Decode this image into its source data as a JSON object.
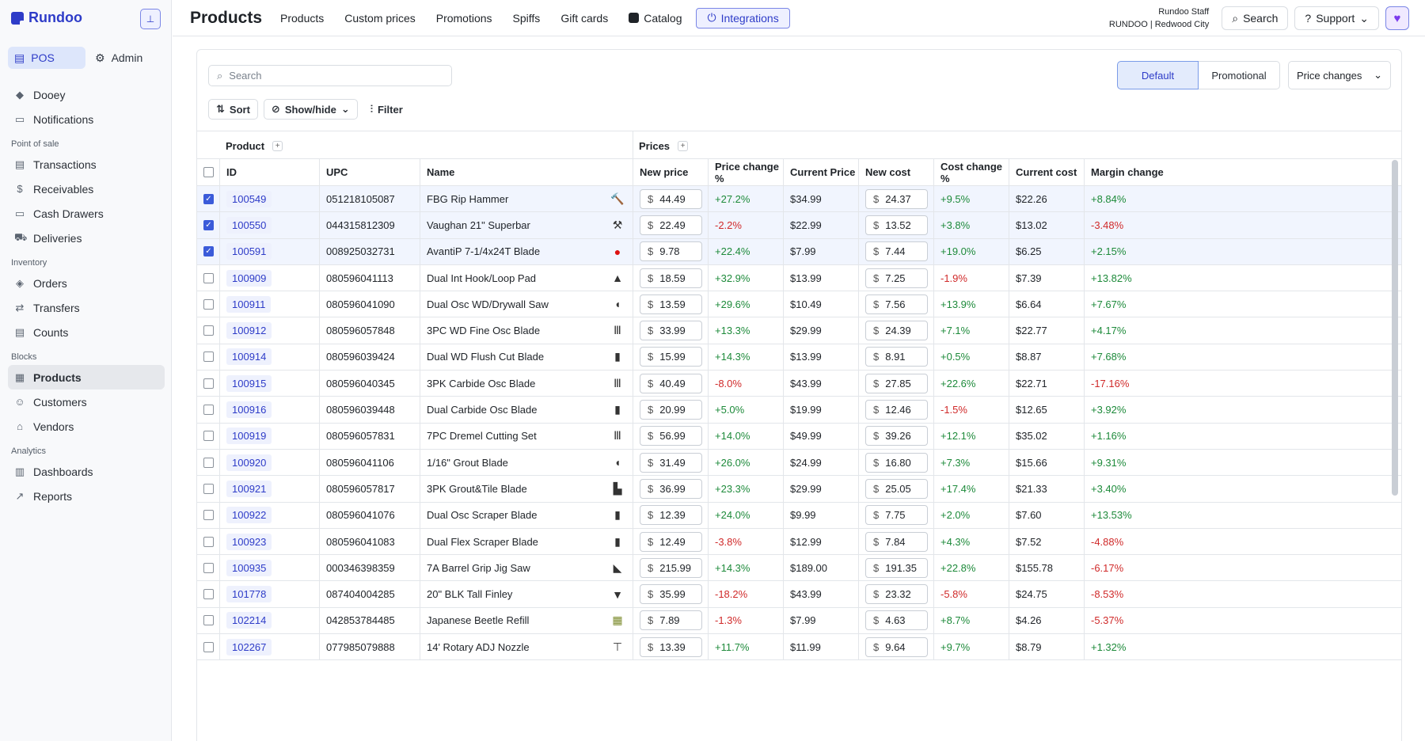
{
  "brand": {
    "name": "Rundoo"
  },
  "sidebar": {
    "modes": [
      {
        "label": "POS",
        "icon": "pos-icon"
      },
      {
        "label": "Admin",
        "icon": "gear-icon"
      }
    ],
    "top_items": [
      {
        "label": "Dooey",
        "icon": "diamond-icon"
      },
      {
        "label": "Notifications",
        "icon": "inbox-icon"
      }
    ],
    "sections": [
      {
        "title": "Point of sale",
        "items": [
          {
            "label": "Transactions",
            "icon": "receipt-icon"
          },
          {
            "label": "Receivables",
            "icon": "dollar-icon"
          },
          {
            "label": "Cash Drawers",
            "icon": "drawer-icon"
          },
          {
            "label": "Deliveries",
            "icon": "truck-icon"
          }
        ]
      },
      {
        "title": "Inventory",
        "items": [
          {
            "label": "Orders",
            "icon": "box-icon"
          },
          {
            "label": "Transfers",
            "icon": "transfer-icon"
          },
          {
            "label": "Counts",
            "icon": "clipboard-icon"
          }
        ]
      },
      {
        "title": "Blocks",
        "items": [
          {
            "label": "Products",
            "icon": "grid-icon",
            "active": true
          },
          {
            "label": "Customers",
            "icon": "people-icon"
          },
          {
            "label": "Vendors",
            "icon": "store-icon"
          }
        ]
      },
      {
        "title": "Analytics",
        "items": [
          {
            "label": "Dashboards",
            "icon": "bar-chart-icon"
          },
          {
            "label": "Reports",
            "icon": "line-chart-icon"
          }
        ]
      }
    ]
  },
  "header": {
    "title": "Products",
    "nav": [
      "Products",
      "Custom prices",
      "Promotions",
      "Spiffs",
      "Gift cards",
      "Catalog",
      "Integrations"
    ],
    "user_name": "Rundoo Staff",
    "user_store": "RUNDOO | Redwood City",
    "search_label": "Search",
    "support_label": "Support"
  },
  "toolbar": {
    "search_placeholder": "Search",
    "sort_label": "Sort",
    "showhide_label": "Show/hide",
    "filter_label": "Filter",
    "view_default": "Default",
    "view_promotional": "Promotional",
    "price_select": "Price changes"
  },
  "table": {
    "groups": {
      "product": "Product",
      "prices": "Prices"
    },
    "columns": [
      "ID",
      "UPC",
      "Name",
      "New price",
      "Price change %",
      "Current Price",
      "New cost",
      "Cost change %",
      "Current cost",
      "Margin change"
    ],
    "currency": "$",
    "rows": [
      {
        "checked": true,
        "id": "100549",
        "upc": "051218105087",
        "name": "FBG Rip Hammer",
        "new_price": "44.49",
        "price_change": "+27.2%",
        "current_price": "$34.99",
        "new_cost": "24.37",
        "cost_change": "+9.5%",
        "current_cost": "$22.26",
        "margin_change": "+8.84%",
        "thumb": "🔨"
      },
      {
        "checked": true,
        "id": "100550",
        "upc": "044315812309",
        "name": "Vaughan 21\" Superbar",
        "new_price": "22.49",
        "price_change": "-2.2%",
        "current_price": "$22.99",
        "new_cost": "13.52",
        "cost_change": "+3.8%",
        "current_cost": "$13.02",
        "margin_change": "-3.48%",
        "thumb": "⚒"
      },
      {
        "checked": true,
        "id": "100591",
        "upc": "008925032731",
        "name": "AvantiP 7-1/4x24T Blade",
        "new_price": "9.78",
        "price_change": "+22.4%",
        "current_price": "$7.99",
        "new_cost": "7.44",
        "cost_change": "+19.0%",
        "current_cost": "$6.25",
        "margin_change": "+2.15%",
        "thumb": "●"
      },
      {
        "checked": false,
        "id": "100909",
        "upc": "080596041113",
        "name": "Dual Int Hook/Loop Pad",
        "new_price": "18.59",
        "price_change": "+32.9%",
        "current_price": "$13.99",
        "new_cost": "7.25",
        "cost_change": "-1.9%",
        "current_cost": "$7.39",
        "margin_change": "+13.82%",
        "thumb": "▲"
      },
      {
        "checked": false,
        "id": "100911",
        "upc": "080596041090",
        "name": "Dual Osc WD/Drywall Saw",
        "new_price": "13.59",
        "price_change": "+29.6%",
        "current_price": "$10.49",
        "new_cost": "7.56",
        "cost_change": "+13.9%",
        "current_cost": "$6.64",
        "margin_change": "+7.67%",
        "thumb": "◖"
      },
      {
        "checked": false,
        "id": "100912",
        "upc": "080596057848",
        "name": "3PC WD Fine Osc Blade",
        "new_price": "33.99",
        "price_change": "+13.3%",
        "current_price": "$29.99",
        "new_cost": "24.39",
        "cost_change": "+7.1%",
        "current_cost": "$22.77",
        "margin_change": "+4.17%",
        "thumb": "Ⅲ"
      },
      {
        "checked": false,
        "id": "100914",
        "upc": "080596039424",
        "name": "Dual WD Flush Cut Blade",
        "new_price": "15.99",
        "price_change": "+14.3%",
        "current_price": "$13.99",
        "new_cost": "8.91",
        "cost_change": "+0.5%",
        "current_cost": "$8.87",
        "margin_change": "+7.68%",
        "thumb": "▮"
      },
      {
        "checked": false,
        "id": "100915",
        "upc": "080596040345",
        "name": "3PK Carbide Osc Blade",
        "new_price": "40.49",
        "price_change": "-8.0%",
        "current_price": "$43.99",
        "new_cost": "27.85",
        "cost_change": "+22.6%",
        "current_cost": "$22.71",
        "margin_change": "-17.16%",
        "thumb": "Ⅲ"
      },
      {
        "checked": false,
        "id": "100916",
        "upc": "080596039448",
        "name": "Dual Carbide Osc Blade",
        "new_price": "20.99",
        "price_change": "+5.0%",
        "current_price": "$19.99",
        "new_cost": "12.46",
        "cost_change": "-1.5%",
        "current_cost": "$12.65",
        "margin_change": "+3.92%",
        "thumb": "▮"
      },
      {
        "checked": false,
        "id": "100919",
        "upc": "080596057831",
        "name": "7PC Dremel Cutting Set",
        "new_price": "56.99",
        "price_change": "+14.0%",
        "current_price": "$49.99",
        "new_cost": "39.26",
        "cost_change": "+12.1%",
        "current_cost": "$35.02",
        "margin_change": "+1.16%",
        "thumb": "Ⅲ"
      },
      {
        "checked": false,
        "id": "100920",
        "upc": "080596041106",
        "name": "1/16\" Grout Blade",
        "new_price": "31.49",
        "price_change": "+26.0%",
        "current_price": "$24.99",
        "new_cost": "16.80",
        "cost_change": "+7.3%",
        "current_cost": "$15.66",
        "margin_change": "+9.31%",
        "thumb": "◖"
      },
      {
        "checked": false,
        "id": "100921",
        "upc": "080596057817",
        "name": "3PK Grout&Tile Blade",
        "new_price": "36.99",
        "price_change": "+23.3%",
        "current_price": "$29.99",
        "new_cost": "25.05",
        "cost_change": "+17.4%",
        "current_cost": "$21.33",
        "margin_change": "+3.40%",
        "thumb": "▙"
      },
      {
        "checked": false,
        "id": "100922",
        "upc": "080596041076",
        "name": "Dual Osc Scraper Blade",
        "new_price": "12.39",
        "price_change": "+24.0%",
        "current_price": "$9.99",
        "new_cost": "7.75",
        "cost_change": "+2.0%",
        "current_cost": "$7.60",
        "margin_change": "+13.53%",
        "thumb": "▮"
      },
      {
        "checked": false,
        "id": "100923",
        "upc": "080596041083",
        "name": "Dual Flex Scraper Blade",
        "new_price": "12.49",
        "price_change": "-3.8%",
        "current_price": "$12.99",
        "new_cost": "7.84",
        "cost_change": "+4.3%",
        "current_cost": "$7.52",
        "margin_change": "-4.88%",
        "thumb": "▮"
      },
      {
        "checked": false,
        "id": "100935",
        "upc": "000346398359",
        "name": "7A Barrel Grip Jig Saw",
        "new_price": "215.99",
        "price_change": "+14.3%",
        "current_price": "$189.00",
        "new_cost": "191.35",
        "cost_change": "+22.8%",
        "current_cost": "$155.78",
        "margin_change": "-6.17%",
        "thumb": "◣"
      },
      {
        "checked": false,
        "id": "101778",
        "upc": "087404004285",
        "name": "20\" BLK Tall Finley",
        "new_price": "35.99",
        "price_change": "-18.2%",
        "current_price": "$43.99",
        "new_cost": "23.32",
        "cost_change": "-5.8%",
        "current_cost": "$24.75",
        "margin_change": "-8.53%",
        "thumb": "▼"
      },
      {
        "checked": false,
        "id": "102214",
        "upc": "042853784485",
        "name": "Japanese Beetle Refill",
        "new_price": "7.89",
        "price_change": "-1.3%",
        "current_price": "$7.99",
        "new_cost": "4.63",
        "cost_change": "+8.7%",
        "current_cost": "$4.26",
        "margin_change": "-5.37%",
        "thumb": "▦"
      },
      {
        "checked": false,
        "id": "102267",
        "upc": "077985079888",
        "name": "14' Rotary ADJ Nozzle",
        "new_price": "13.39",
        "price_change": "+11.7%",
        "current_price": "$11.99",
        "new_cost": "9.64",
        "cost_change": "+9.7%",
        "current_cost": "$8.79",
        "margin_change": "+1.32%",
        "thumb": "⊤"
      }
    ]
  }
}
